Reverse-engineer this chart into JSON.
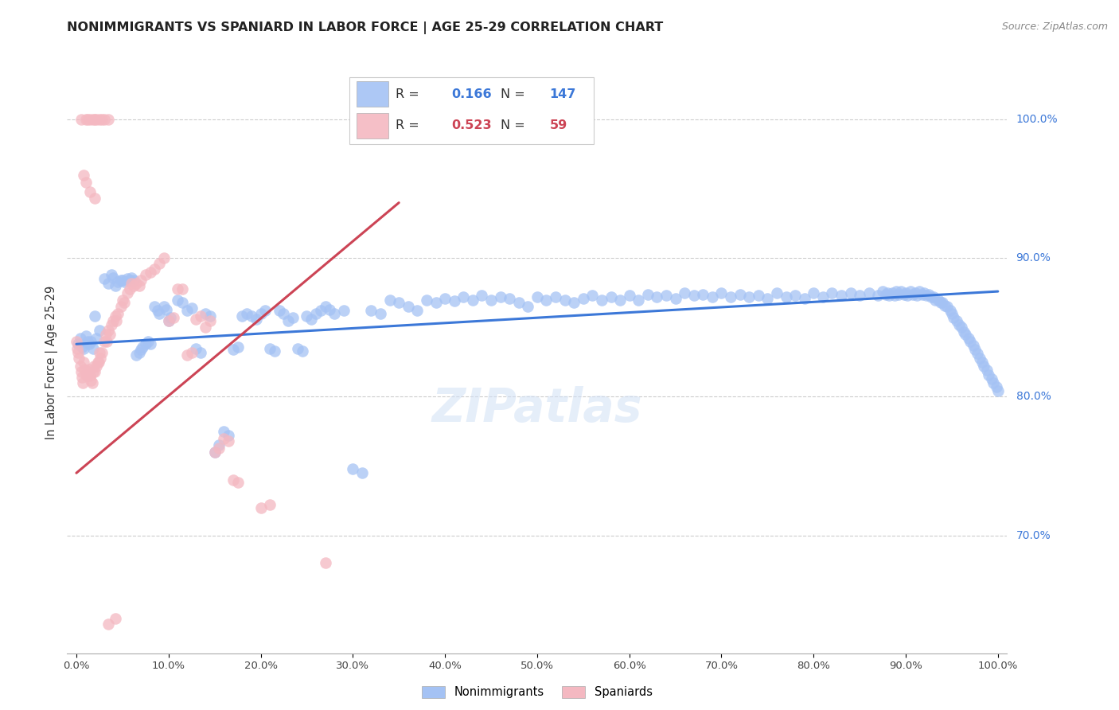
{
  "title": "NONIMMIGRANTS VS SPANIARD IN LABOR FORCE | AGE 25-29 CORRELATION CHART",
  "source": "Source: ZipAtlas.com",
  "ylabel": "In Labor Force | Age 25-29",
  "xlim": [
    -0.01,
    1.01
  ],
  "ylim": [
    0.615,
    1.035
  ],
  "xticks": [
    0.0,
    0.1,
    0.2,
    0.3,
    0.4,
    0.5,
    0.6,
    0.7,
    0.8,
    0.9,
    1.0
  ],
  "yticks": [
    0.7,
    0.8,
    0.9,
    1.0
  ],
  "xtick_labels": [
    "0.0%",
    "10.0%",
    "20.0%",
    "30.0%",
    "40.0%",
    "50.0%",
    "60.0%",
    "70.0%",
    "80.0%",
    "90.0%",
    "100.0%"
  ],
  "ytick_labels": [
    "70.0%",
    "80.0%",
    "90.0%",
    "100.0%"
  ],
  "watermark": "ZIPatlas",
  "legend_R_blue": "0.166",
  "legend_N_blue": "147",
  "legend_R_pink": "0.523",
  "legend_N_pink": "59",
  "blue_color": "#a4c2f4",
  "pink_color": "#f4b8c1",
  "blue_line_color": "#3c78d8",
  "pink_line_color": "#cc4455",
  "blue_scatter": [
    [
      0.002,
      0.838
    ],
    [
      0.004,
      0.842
    ],
    [
      0.006,
      0.836
    ],
    [
      0.008,
      0.835
    ],
    [
      0.01,
      0.844
    ],
    [
      0.012,
      0.84
    ],
    [
      0.014,
      0.838
    ],
    [
      0.016,
      0.84
    ],
    [
      0.018,
      0.835
    ],
    [
      0.02,
      0.858
    ],
    [
      0.022,
      0.842
    ],
    [
      0.025,
      0.848
    ],
    [
      0.03,
      0.885
    ],
    [
      0.035,
      0.882
    ],
    [
      0.038,
      0.888
    ],
    [
      0.04,
      0.886
    ],
    [
      0.042,
      0.88
    ],
    [
      0.045,
      0.883
    ],
    [
      0.048,
      0.884
    ],
    [
      0.05,
      0.884
    ],
    [
      0.052,
      0.883
    ],
    [
      0.055,
      0.885
    ],
    [
      0.058,
      0.884
    ],
    [
      0.06,
      0.886
    ],
    [
      0.062,
      0.884
    ],
    [
      0.065,
      0.83
    ],
    [
      0.068,
      0.832
    ],
    [
      0.07,
      0.834
    ],
    [
      0.072,
      0.836
    ],
    [
      0.075,
      0.838
    ],
    [
      0.078,
      0.84
    ],
    [
      0.08,
      0.838
    ],
    [
      0.085,
      0.865
    ],
    [
      0.088,
      0.862
    ],
    [
      0.09,
      0.86
    ],
    [
      0.095,
      0.865
    ],
    [
      0.098,
      0.863
    ],
    [
      0.1,
      0.855
    ],
    [
      0.102,
      0.857
    ],
    [
      0.11,
      0.87
    ],
    [
      0.115,
      0.868
    ],
    [
      0.12,
      0.862
    ],
    [
      0.125,
      0.864
    ],
    [
      0.13,
      0.835
    ],
    [
      0.135,
      0.832
    ],
    [
      0.14,
      0.86
    ],
    [
      0.145,
      0.858
    ],
    [
      0.15,
      0.76
    ],
    [
      0.155,
      0.765
    ],
    [
      0.16,
      0.775
    ],
    [
      0.165,
      0.772
    ],
    [
      0.17,
      0.834
    ],
    [
      0.175,
      0.836
    ],
    [
      0.18,
      0.858
    ],
    [
      0.185,
      0.86
    ],
    [
      0.19,
      0.858
    ],
    [
      0.195,
      0.856
    ],
    [
      0.2,
      0.86
    ],
    [
      0.205,
      0.862
    ],
    [
      0.21,
      0.835
    ],
    [
      0.215,
      0.833
    ],
    [
      0.22,
      0.862
    ],
    [
      0.225,
      0.86
    ],
    [
      0.23,
      0.855
    ],
    [
      0.235,
      0.857
    ],
    [
      0.24,
      0.835
    ],
    [
      0.245,
      0.833
    ],
    [
      0.25,
      0.858
    ],
    [
      0.255,
      0.856
    ],
    [
      0.26,
      0.86
    ],
    [
      0.265,
      0.862
    ],
    [
      0.27,
      0.865
    ],
    [
      0.275,
      0.863
    ],
    [
      0.28,
      0.86
    ],
    [
      0.29,
      0.862
    ],
    [
      0.3,
      0.748
    ],
    [
      0.31,
      0.745
    ],
    [
      0.32,
      0.862
    ],
    [
      0.33,
      0.86
    ],
    [
      0.34,
      0.87
    ],
    [
      0.35,
      0.868
    ],
    [
      0.36,
      0.865
    ],
    [
      0.37,
      0.862
    ],
    [
      0.38,
      0.87
    ],
    [
      0.39,
      0.868
    ],
    [
      0.4,
      0.871
    ],
    [
      0.41,
      0.869
    ],
    [
      0.42,
      0.872
    ],
    [
      0.43,
      0.87
    ],
    [
      0.44,
      0.873
    ],
    [
      0.45,
      0.87
    ],
    [
      0.46,
      0.872
    ],
    [
      0.47,
      0.871
    ],
    [
      0.48,
      0.868
    ],
    [
      0.49,
      0.865
    ],
    [
      0.5,
      0.872
    ],
    [
      0.51,
      0.87
    ],
    [
      0.52,
      0.872
    ],
    [
      0.53,
      0.87
    ],
    [
      0.54,
      0.868
    ],
    [
      0.55,
      0.871
    ],
    [
      0.56,
      0.873
    ],
    [
      0.57,
      0.87
    ],
    [
      0.58,
      0.872
    ],
    [
      0.59,
      0.87
    ],
    [
      0.6,
      0.873
    ],
    [
      0.61,
      0.87
    ],
    [
      0.62,
      0.874
    ],
    [
      0.63,
      0.872
    ],
    [
      0.64,
      0.873
    ],
    [
      0.65,
      0.871
    ],
    [
      0.66,
      0.875
    ],
    [
      0.67,
      0.873
    ],
    [
      0.68,
      0.874
    ],
    [
      0.69,
      0.872
    ],
    [
      0.7,
      0.875
    ],
    [
      0.71,
      0.872
    ],
    [
      0.72,
      0.874
    ],
    [
      0.73,
      0.872
    ],
    [
      0.74,
      0.873
    ],
    [
      0.75,
      0.871
    ],
    [
      0.76,
      0.875
    ],
    [
      0.77,
      0.872
    ],
    [
      0.78,
      0.873
    ],
    [
      0.79,
      0.871
    ],
    [
      0.8,
      0.875
    ],
    [
      0.81,
      0.872
    ],
    [
      0.82,
      0.875
    ],
    [
      0.83,
      0.873
    ],
    [
      0.84,
      0.875
    ],
    [
      0.85,
      0.873
    ],
    [
      0.86,
      0.875
    ],
    [
      0.87,
      0.873
    ],
    [
      0.875,
      0.876
    ],
    [
      0.878,
      0.874
    ],
    [
      0.88,
      0.875
    ],
    [
      0.882,
      0.873
    ],
    [
      0.885,
      0.875
    ],
    [
      0.888,
      0.873
    ],
    [
      0.89,
      0.876
    ],
    [
      0.892,
      0.874
    ],
    [
      0.895,
      0.876
    ],
    [
      0.898,
      0.874
    ],
    [
      0.9,
      0.875
    ],
    [
      0.902,
      0.873
    ],
    [
      0.905,
      0.876
    ],
    [
      0.908,
      0.874
    ],
    [
      0.91,
      0.875
    ],
    [
      0.912,
      0.873
    ],
    [
      0.915,
      0.876
    ],
    [
      0.918,
      0.874
    ],
    [
      0.92,
      0.875
    ],
    [
      0.922,
      0.873
    ],
    [
      0.925,
      0.874
    ],
    [
      0.928,
      0.872
    ],
    [
      0.93,
      0.872
    ],
    [
      0.932,
      0.87
    ],
    [
      0.935,
      0.87
    ],
    [
      0.938,
      0.868
    ],
    [
      0.94,
      0.868
    ],
    [
      0.942,
      0.866
    ],
    [
      0.945,
      0.865
    ],
    [
      0.948,
      0.862
    ],
    [
      0.95,
      0.86
    ],
    [
      0.952,
      0.857
    ],
    [
      0.955,
      0.855
    ],
    [
      0.958,
      0.852
    ],
    [
      0.96,
      0.85
    ],
    [
      0.963,
      0.847
    ],
    [
      0.965,
      0.845
    ],
    [
      0.968,
      0.842
    ],
    [
      0.97,
      0.84
    ],
    [
      0.973,
      0.837
    ],
    [
      0.975,
      0.834
    ],
    [
      0.978,
      0.831
    ],
    [
      0.98,
      0.828
    ],
    [
      0.983,
      0.825
    ],
    [
      0.985,
      0.822
    ],
    [
      0.988,
      0.819
    ],
    [
      0.99,
      0.816
    ],
    [
      0.993,
      0.813
    ],
    [
      0.995,
      0.81
    ],
    [
      0.998,
      0.807
    ],
    [
      1.0,
      0.804
    ]
  ],
  "pink_scatter": [
    [
      0.0,
      0.84
    ],
    [
      0.001,
      0.835
    ],
    [
      0.002,
      0.832
    ],
    [
      0.003,
      0.828
    ],
    [
      0.004,
      0.822
    ],
    [
      0.005,
      0.818
    ],
    [
      0.006,
      0.814
    ],
    [
      0.007,
      0.81
    ],
    [
      0.008,
      0.825
    ],
    [
      0.009,
      0.82
    ],
    [
      0.01,
      0.816
    ],
    [
      0.012,
      0.815
    ],
    [
      0.013,
      0.818
    ],
    [
      0.014,
      0.82
    ],
    [
      0.015,
      0.815
    ],
    [
      0.016,
      0.812
    ],
    [
      0.017,
      0.81
    ],
    [
      0.018,
      0.818
    ],
    [
      0.019,
      0.822
    ],
    [
      0.02,
      0.818
    ],
    [
      0.022,
      0.822
    ],
    [
      0.023,
      0.825
    ],
    [
      0.024,
      0.825
    ],
    [
      0.025,
      0.832
    ],
    [
      0.026,
      0.828
    ],
    [
      0.028,
      0.832
    ],
    [
      0.03,
      0.84
    ],
    [
      0.032,
      0.845
    ],
    [
      0.033,
      0.84
    ],
    [
      0.035,
      0.848
    ],
    [
      0.036,
      0.845
    ],
    [
      0.038,
      0.852
    ],
    [
      0.04,
      0.855
    ],
    [
      0.042,
      0.858
    ],
    [
      0.043,
      0.855
    ],
    [
      0.045,
      0.86
    ],
    [
      0.048,
      0.865
    ],
    [
      0.05,
      0.87
    ],
    [
      0.052,
      0.868
    ],
    [
      0.055,
      0.875
    ],
    [
      0.058,
      0.878
    ],
    [
      0.06,
      0.882
    ],
    [
      0.062,
      0.88
    ],
    [
      0.065,
      0.882
    ],
    [
      0.068,
      0.88
    ],
    [
      0.07,
      0.884
    ],
    [
      0.075,
      0.888
    ],
    [
      0.08,
      0.89
    ],
    [
      0.085,
      0.892
    ],
    [
      0.09,
      0.896
    ],
    [
      0.095,
      0.9
    ],
    [
      0.1,
      0.855
    ],
    [
      0.105,
      0.857
    ],
    [
      0.11,
      0.878
    ],
    [
      0.115,
      0.878
    ],
    [
      0.12,
      0.83
    ],
    [
      0.125,
      0.832
    ],
    [
      0.13,
      0.856
    ],
    [
      0.135,
      0.858
    ],
    [
      0.14,
      0.85
    ],
    [
      0.145,
      0.855
    ],
    [
      0.15,
      0.76
    ],
    [
      0.155,
      0.763
    ],
    [
      0.16,
      0.77
    ],
    [
      0.165,
      0.768
    ],
    [
      0.17,
      0.74
    ],
    [
      0.175,
      0.738
    ],
    [
      0.2,
      0.72
    ],
    [
      0.21,
      0.722
    ],
    [
      0.27,
      0.68
    ],
    [
      0.005,
      1.0
    ],
    [
      0.01,
      1.0
    ],
    [
      0.012,
      1.0
    ],
    [
      0.015,
      1.0
    ],
    [
      0.018,
      1.0
    ],
    [
      0.02,
      1.0
    ],
    [
      0.022,
      1.0
    ],
    [
      0.025,
      1.0
    ],
    [
      0.028,
      1.0
    ],
    [
      0.03,
      1.0
    ],
    [
      0.035,
      1.0
    ],
    [
      0.008,
      0.96
    ],
    [
      0.01,
      0.955
    ],
    [
      0.015,
      0.948
    ],
    [
      0.02,
      0.943
    ],
    [
      0.035,
      0.636
    ],
    [
      0.042,
      0.64
    ]
  ],
  "blue_line_x": [
    0.0,
    1.0
  ],
  "blue_line_y": [
    0.838,
    0.876
  ],
  "pink_line_x": [
    0.0,
    0.35
  ],
  "pink_line_y": [
    0.745,
    0.94
  ]
}
